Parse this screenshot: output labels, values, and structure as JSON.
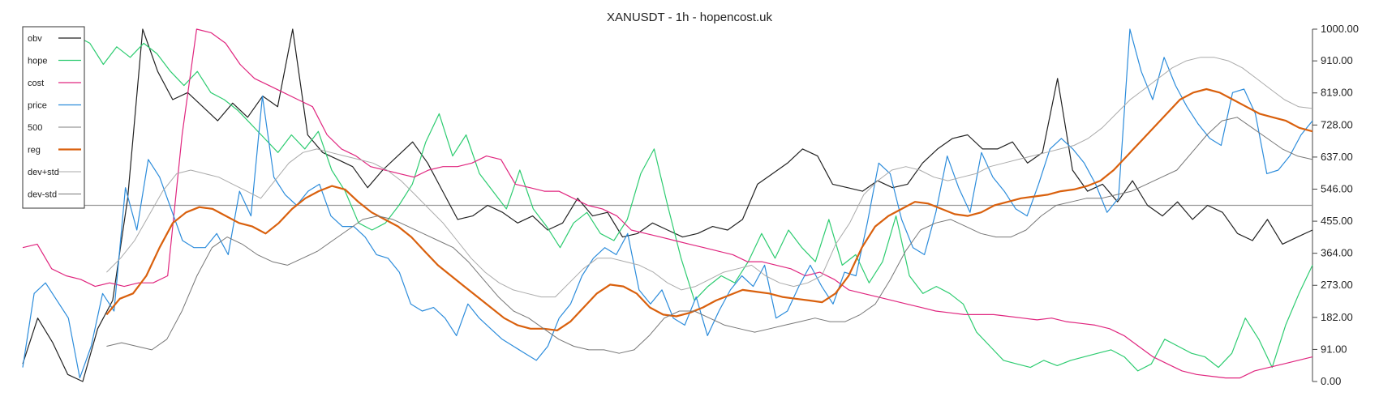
{
  "chart_data": {
    "type": "line",
    "title": "XANUSDT - 1h - hopencost.uk",
    "xlabel": "",
    "ylabel": "",
    "ylim": [
      0,
      1000
    ],
    "yticks": [
      "1000.00",
      "910.00",
      "819.00",
      "728.00",
      "637.00",
      "546.00",
      "455.00",
      "364.00",
      "273.00",
      "182.00",
      "91.00",
      "0.00"
    ],
    "ytick_values": [
      1000,
      910,
      819,
      728,
      637,
      546,
      455,
      364,
      273,
      182,
      91,
      0
    ],
    "grid": false,
    "legend_position": "top-left",
    "hline": {
      "name": "500",
      "value": 500
    },
    "legend": [
      "obv",
      "hope",
      "cost",
      "price",
      "500",
      "reg",
      "dev+std",
      "dev-std"
    ],
    "series": [
      {
        "name": "obv",
        "color": "#222222",
        "width": 1.2,
        "x_start": 0,
        "x_end": 1,
        "values": [
          50,
          180,
          110,
          20,
          0,
          150,
          230,
          520,
          1000,
          880,
          800,
          820,
          780,
          740,
          790,
          750,
          810,
          780,
          1000,
          700,
          650,
          630,
          610,
          550,
          600,
          640,
          680,
          620,
          540,
          460,
          470,
          500,
          480,
          450,
          470,
          430,
          450,
          520,
          470,
          480,
          410,
          420,
          450,
          430,
          410,
          420,
          440,
          430,
          460,
          560,
          590,
          620,
          660,
          640,
          560,
          550,
          540,
          570,
          550,
          560,
          620,
          660,
          690,
          700,
          660,
          660,
          680,
          620,
          650,
          860,
          600,
          540,
          560,
          510,
          570,
          500,
          470,
          510,
          460,
          500,
          480,
          420,
          400,
          460,
          390,
          410,
          430
        ]
      },
      {
        "name": "hope",
        "color": "#2ecc71",
        "width": 1.2,
        "x_start": 0,
        "x_end": 1,
        "values": [
          930,
          960,
          990,
          1000,
          980,
          960,
          900,
          950,
          920,
          960,
          930,
          880,
          840,
          880,
          820,
          800,
          770,
          730,
          690,
          650,
          700,
          660,
          710,
          600,
          540,
          450,
          430,
          450,
          500,
          560,
          680,
          760,
          640,
          700,
          590,
          540,
          490,
          600,
          490,
          440,
          380,
          450,
          480,
          420,
          400,
          460,
          590,
          660,
          500,
          350,
          230,
          270,
          300,
          280,
          340,
          420,
          350,
          430,
          380,
          340,
          460,
          330,
          360,
          280,
          340,
          470,
          300,
          250,
          270,
          250,
          220,
          140,
          100,
          60,
          50,
          40,
          60,
          45,
          60,
          70,
          80,
          90,
          70,
          30,
          50,
          120,
          100,
          80,
          70,
          40,
          80,
          180,
          120,
          40,
          160,
          250,
          330
        ]
      },
      {
        "name": "cost",
        "color": "#e0267f",
        "width": 1.2,
        "x_start": 0,
        "x_end": 1,
        "values": [
          380,
          390,
          320,
          300,
          290,
          270,
          280,
          270,
          280,
          280,
          300,
          700,
          1000,
          990,
          960,
          900,
          860,
          840,
          820,
          800,
          780,
          700,
          660,
          640,
          610,
          600,
          590,
          580,
          600,
          610,
          610,
          620,
          640,
          630,
          560,
          550,
          540,
          540,
          520,
          500,
          490,
          470,
          430,
          420,
          410,
          400,
          390,
          380,
          370,
          360,
          340,
          340,
          330,
          320,
          300,
          310,
          290,
          260,
          250,
          240,
          230,
          220,
          210,
          200,
          195,
          190,
          190,
          190,
          185,
          180,
          175,
          180,
          170,
          165,
          160,
          150,
          130,
          100,
          70,
          50,
          30,
          20,
          15,
          10,
          10,
          30,
          40,
          50,
          60,
          70
        ]
      },
      {
        "name": "price",
        "color": "#2c8cdb",
        "width": 1.2,
        "x_start": 0,
        "x_end": 1,
        "values": [
          40,
          250,
          280,
          230,
          180,
          10,
          100,
          250,
          200,
          550,
          430,
          630,
          580,
          490,
          400,
          380,
          380,
          420,
          360,
          540,
          470,
          810,
          580,
          530,
          500,
          540,
          560,
          470,
          440,
          440,
          410,
          360,
          350,
          310,
          220,
          200,
          210,
          180,
          130,
          220,
          180,
          150,
          120,
          100,
          80,
          60,
          100,
          180,
          220,
          300,
          350,
          380,
          360,
          420,
          260,
          220,
          260,
          180,
          160,
          240,
          130,
          200,
          260,
          300,
          270,
          330,
          180,
          200,
          270,
          330,
          270,
          220,
          310,
          300,
          450,
          620,
          590,
          460,
          380,
          360,
          480,
          640,
          550,
          480,
          650,
          580,
          540,
          490,
          470,
          560,
          660,
          690,
          660,
          620,
          560,
          480,
          520,
          1000,
          880,
          800,
          920,
          840,
          780,
          730,
          690,
          670,
          820,
          830,
          760,
          590,
          600,
          640,
          700,
          740
        ]
      },
      {
        "name": "reg",
        "color": "#d9600d",
        "width": 2.2,
        "x_start": 0.065,
        "x_end": 1,
        "values": [
          190,
          235,
          250,
          300,
          380,
          450,
          480,
          495,
          490,
          470,
          450,
          440,
          420,
          450,
          490,
          520,
          540,
          555,
          545,
          510,
          480,
          460,
          440,
          410,
          370,
          330,
          300,
          270,
          240,
          210,
          180,
          160,
          150,
          150,
          145,
          170,
          210,
          250,
          275,
          270,
          250,
          210,
          190,
          185,
          195,
          210,
          230,
          245,
          260,
          255,
          250,
          240,
          235,
          230,
          225,
          250,
          300,
          380,
          440,
          470,
          490,
          510,
          505,
          490,
          475,
          470,
          480,
          500,
          510,
          520,
          525,
          530,
          540,
          545,
          555,
          570,
          600,
          640,
          680,
          720,
          760,
          800,
          820,
          830,
          820,
          800,
          780,
          760,
          750,
          740,
          720,
          710
        ]
      },
      {
        "name": "dev+std",
        "color": "#aaaaaa",
        "width": 1.0,
        "x_start": 0.065,
        "x_end": 1,
        "values": [
          310,
          350,
          400,
          470,
          540,
          590,
          600,
          590,
          580,
          560,
          540,
          520,
          570,
          620,
          650,
          660,
          650,
          640,
          630,
          620,
          600,
          570,
          530,
          490,
          450,
          400,
          350,
          310,
          280,
          260,
          250,
          240,
          240,
          280,
          320,
          350,
          350,
          340,
          330,
          310,
          280,
          260,
          270,
          290,
          310,
          320,
          330,
          300,
          280,
          270,
          280,
          300,
          390,
          450,
          530,
          570,
          600,
          610,
          600,
          580,
          570,
          580,
          590,
          610,
          620,
          630,
          640,
          650,
          660,
          670,
          690,
          720,
          760,
          800,
          830,
          860,
          890,
          910,
          920,
          920,
          910,
          890,
          860,
          830,
          800,
          780,
          775
        ]
      },
      {
        "name": "dev-std",
        "color": "#777777",
        "width": 1.0,
        "x_start": 0.065,
        "x_end": 1,
        "values": [
          100,
          110,
          100,
          90,
          120,
          200,
          300,
          380,
          410,
          390,
          360,
          340,
          330,
          350,
          370,
          400,
          430,
          460,
          470,
          460,
          440,
          420,
          400,
          380,
          340,
          290,
          240,
          200,
          180,
          150,
          120,
          100,
          90,
          90,
          80,
          90,
          130,
          180,
          200,
          200,
          180,
          160,
          150,
          140,
          150,
          160,
          170,
          180,
          170,
          170,
          190,
          220,
          290,
          370,
          430,
          450,
          460,
          440,
          420,
          410,
          410,
          430,
          470,
          500,
          510,
          520,
          520,
          530,
          540,
          560,
          580,
          600,
          650,
          700,
          740,
          750,
          720,
          690,
          660,
          640,
          630
        ]
      }
    ]
  }
}
